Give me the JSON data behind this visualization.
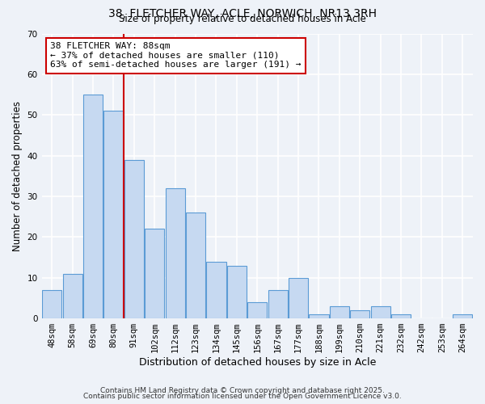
{
  "title": "38, FLETCHER WAY, ACLE, NORWICH, NR13 3RH",
  "subtitle": "Size of property relative to detached houses in Acle",
  "xlabel": "Distribution of detached houses by size in Acle",
  "ylabel": "Number of detached properties",
  "bar_labels": [
    "48sqm",
    "58sqm",
    "69sqm",
    "80sqm",
    "91sqm",
    "102sqm",
    "112sqm",
    "123sqm",
    "134sqm",
    "145sqm",
    "156sqm",
    "167sqm",
    "177sqm",
    "188sqm",
    "199sqm",
    "210sqm",
    "221sqm",
    "232sqm",
    "242sqm",
    "253sqm",
    "264sqm"
  ],
  "bar_values": [
    7,
    11,
    55,
    51,
    39,
    22,
    32,
    26,
    14,
    13,
    4,
    7,
    10,
    1,
    3,
    2,
    3,
    1,
    0,
    0,
    1
  ],
  "bar_color": "#c6d9f1",
  "bar_edge_color": "#5b9bd5",
  "vline_color": "#cc0000",
  "annotation_text": "38 FLETCHER WAY: 88sqm\n← 37% of detached houses are smaller (110)\n63% of semi-detached houses are larger (191) →",
  "annotation_box_color": "#ffffff",
  "annotation_box_edge_color": "#cc0000",
  "ylim": [
    0,
    70
  ],
  "background_color": "#eef2f8",
  "footer_line1": "Contains HM Land Registry data © Crown copyright and database right 2025.",
  "footer_line2": "Contains public sector information licensed under the Open Government Licence v3.0."
}
